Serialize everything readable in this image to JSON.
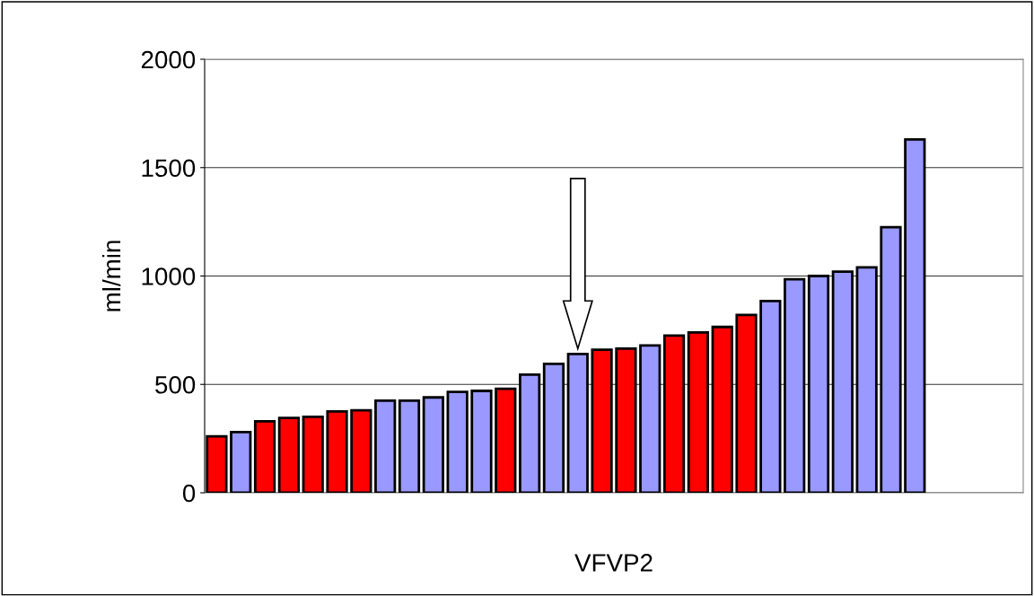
{
  "chart_data": {
    "type": "bar",
    "xlabel": "VFVP2",
    "ylabel": "ml/min",
    "categories": [
      null,
      null,
      null,
      null,
      null,
      null,
      null,
      null,
      null,
      null,
      null,
      null,
      null,
      null,
      null,
      null,
      null,
      null,
      null,
      null,
      null,
      null,
      null,
      null,
      null,
      null,
      null,
      null,
      null,
      null,
      null,
      null,
      null,
      null
    ],
    "values": [
      260,
      280,
      330,
      345,
      350,
      375,
      380,
      425,
      425,
      440,
      465,
      470,
      480,
      545,
      595,
      640,
      660,
      665,
      680,
      725,
      740,
      765,
      820,
      885,
      985,
      1000,
      1020,
      1040,
      1225,
      1630,
      null,
      null,
      null,
      null
    ],
    "colors": [
      "#ff0000",
      "#9999ff",
      "#ff0000",
      "#ff0000",
      "#ff0000",
      "#ff0000",
      "#ff0000",
      "#9999ff",
      "#9999ff",
      "#9999ff",
      "#9999ff",
      "#9999ff",
      "#ff0000",
      "#9999ff",
      "#9999ff",
      "#9999ff",
      "#ff0000",
      "#ff0000",
      "#9999ff",
      "#ff0000",
      "#ff0000",
      "#ff0000",
      "#ff0000",
      "#9999ff",
      "#9999ff",
      "#9999ff",
      "#9999ff",
      "#9999ff",
      "#9999ff",
      "#9999ff",
      "#9999ff",
      "#9999ff",
      "#9999ff",
      "#9999ff"
    ],
    "ylim": [
      0,
      2000
    ],
    "yticks": [
      0,
      500,
      1000,
      1500,
      2000
    ],
    "grid": "y"
  }
}
